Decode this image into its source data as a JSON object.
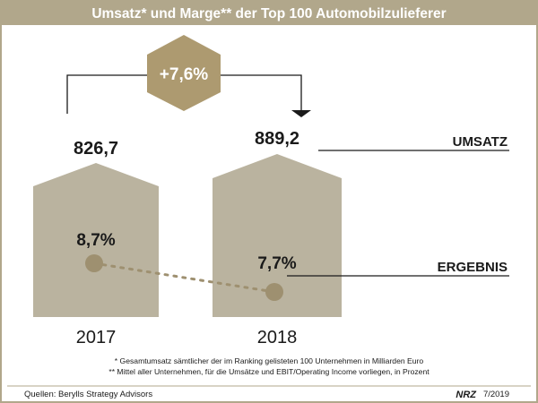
{
  "chart_data": {
    "type": "bar",
    "title": "Umsatz* und Marge** der Top 100 Automobilzulieferer",
    "categories": [
      "2017",
      "2018"
    ],
    "series": [
      {
        "name": "UMSATZ",
        "values": [
          826.7,
          889.2
        ],
        "labels": [
          "826,7",
          "889,2"
        ]
      },
      {
        "name": "ERGEBNIS",
        "values": [
          8.7,
          7.7
        ],
        "labels": [
          "8,7%",
          "7,7%"
        ]
      }
    ],
    "change_label": "+7,6%",
    "footnotes": [
      "* Gesamtumsatz sämtlicher der im Ranking gelisteten 100 Unternehmen in Milliarden Euro",
      "** Mittel aller Unternehmen, für die Umsätze und EBIT/Operating Income vorliegen, in Prozent"
    ],
    "source": "Quellen: Berylls Strategy Advisors",
    "logo": "NRZ",
    "date": "7/2019"
  },
  "colors": {
    "frame": "#b1a78b",
    "bar": "#bab39f",
    "hexagon": "#ad9a70",
    "dot": "#9e9070",
    "text": "#1a1a1a"
  }
}
